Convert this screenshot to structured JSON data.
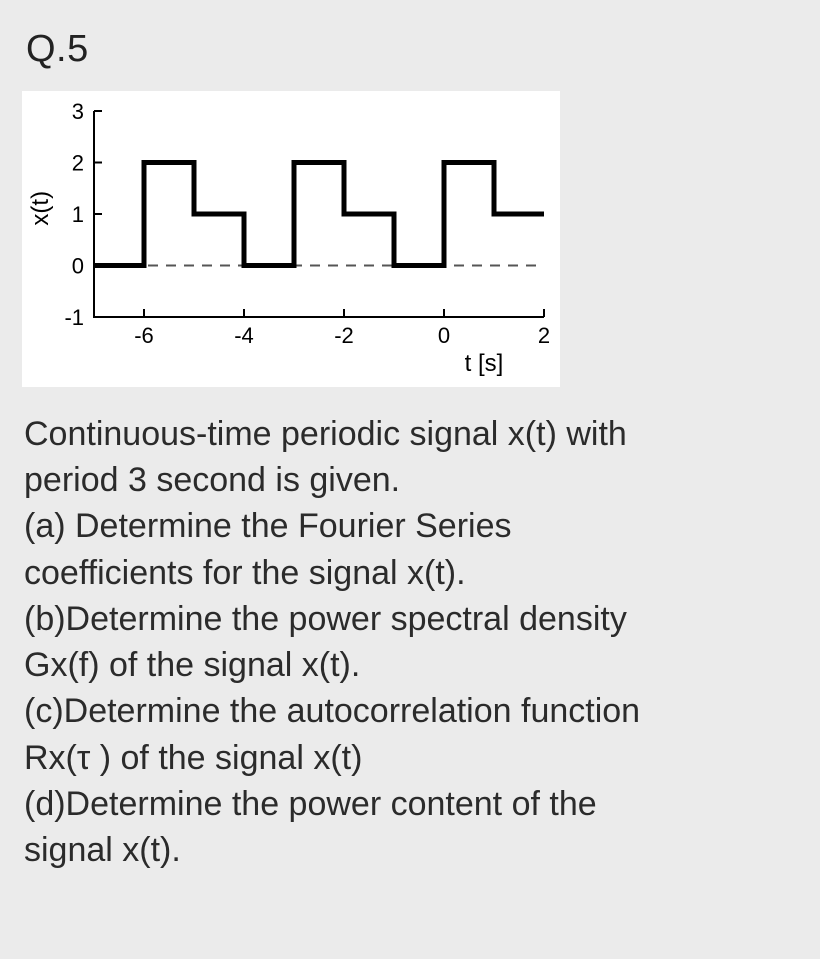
{
  "question_number": "Q.5",
  "chart": {
    "type": "step-line",
    "background_color": "#ffffff",
    "page_background": "#ebebeb",
    "signal_color": "#000000",
    "signal_stroke_width": 5,
    "axis_color": "#000000",
    "dash_color": "#555555",
    "xlabel": "t [s]",
    "ylabel": "x(t)",
    "label_fontsize": 24,
    "tick_fontsize": 22,
    "xlim": [
      -7,
      2
    ],
    "ylim": [
      -1,
      3
    ],
    "xticks": [
      -6,
      -4,
      -2,
      0,
      2
    ],
    "yticks": [
      -1,
      0,
      1,
      2,
      3
    ],
    "zero_dash_y": 0,
    "signal_points": [
      [
        -7,
        0
      ],
      [
        -6,
        0
      ],
      [
        -6,
        2
      ],
      [
        -5,
        2
      ],
      [
        -5,
        1
      ],
      [
        -4,
        1
      ],
      [
        -4,
        0
      ],
      [
        -3,
        0
      ],
      [
        -3,
        2
      ],
      [
        -2,
        2
      ],
      [
        -2,
        1
      ],
      [
        -1,
        1
      ],
      [
        -1,
        0
      ],
      [
        0,
        0
      ],
      [
        0,
        2
      ],
      [
        1,
        2
      ],
      [
        1,
        1
      ],
      [
        2,
        1
      ]
    ]
  },
  "text": {
    "intro1": "Continuous-time periodic signal x(t) with",
    "intro2": "period 3 second is given.",
    "a1": "(a) Determine the Fourier Series",
    "a2": "coefficients for the signal x(t).",
    "b1": "(b)Determine the power spectral density",
    "b2": "Gx(f) of the signal x(t).",
    "c1": "(c)Determine the autocorrelation function",
    "c2": "Rx(τ ) of the signal x(t)",
    "d1": "(d)Determine the power content of the",
    "d2": "signal x(t)."
  }
}
